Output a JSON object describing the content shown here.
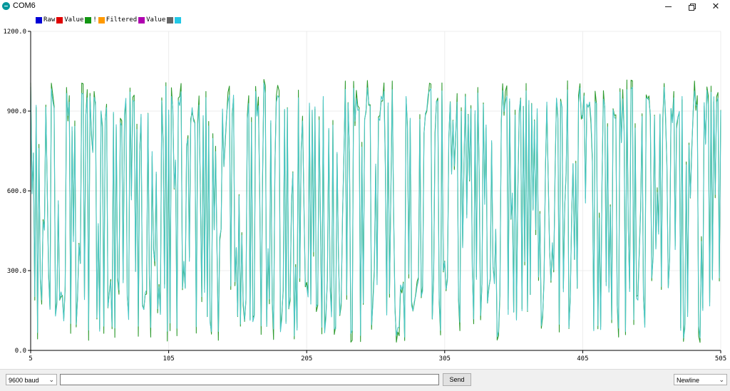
{
  "window": {
    "title": "COM6",
    "minimize_label": "—",
    "maximize_label": "❐",
    "close_label": "✕"
  },
  "legend": {
    "entries": [
      {
        "label": "Raw",
        "color": "#0000d6"
      },
      {
        "label": "Value",
        "color": "#e00000"
      },
      {
        "label": "!",
        "color": "#129612"
      },
      {
        "label": "Filtered",
        "color": "#ff9900"
      },
      {
        "label": "Value",
        "color": "#b000b0"
      },
      {
        "label": "",
        "color": "#666666"
      },
      {
        "label": "",
        "color": "#22c8e6"
      }
    ]
  },
  "bottom": {
    "baud": "9600 baud",
    "send_input_value": "",
    "send_label": "Send",
    "line_ending": "Newline"
  },
  "chart_data": {
    "type": "line",
    "x_tick_labels": [
      "5",
      "105",
      "205",
      "305",
      "405",
      "505"
    ],
    "y_tick_labels": [
      "0.0",
      "300.0",
      "600.0",
      "900.0",
      "1200.0"
    ],
    "xlim": [
      5,
      505
    ],
    "ylim": [
      0,
      1200
    ],
    "grid": true,
    "series": [
      {
        "color": "#2f9b2f",
        "values": []
      },
      {
        "color": "#4cc7c7",
        "values": []
      }
    ]
  }
}
